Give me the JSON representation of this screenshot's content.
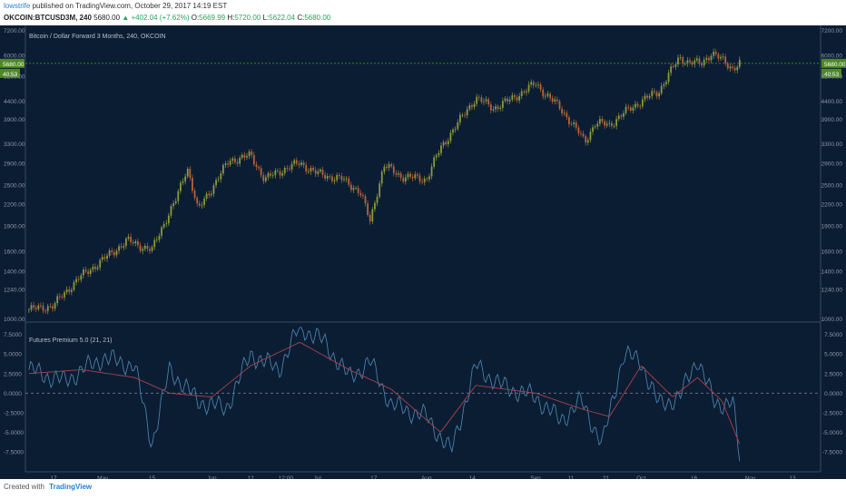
{
  "header": {
    "username": "lowstrife",
    "published_text": "published on TradingView.com, October 29, 2017 14:19 EST",
    "symbol": "OKCOIN:BTCUSD3M, 240",
    "last_price": "5680.00",
    "change": "▲ +402.04 (+7.62%)",
    "open_label": "O:",
    "open_value": "5669.99",
    "high_label": "H:",
    "high_value": "5720.00",
    "low_label": "L:",
    "low_value": "5622.04",
    "close_label": "C:",
    "close_value": "5680.00"
  },
  "footer": {
    "created_with": "Created with",
    "brand": "TradingView"
  },
  "colors": {
    "background": "#0b1d33",
    "candle_up": "#8a9a3a",
    "candle_down": "#b8623a",
    "oscillator": "#4a7fa8",
    "signal": "#a8424e",
    "price_badge": "#4e8a1e",
    "axis_text": "#8b97a6",
    "pane_border": "#3a4b5f",
    "zero_line": "#5f6f82"
  },
  "chart_data": [
    {
      "type": "candlestick",
      "title": "Bitcoin / Dollar Forward 3 Months, 240, OKCOIN",
      "y_scale": "log",
      "ylim": [
        1000,
        7200
      ],
      "y_ticks": [
        "7200.00",
        "6000.00",
        "5200.00",
        "4400.00",
        "3900.00",
        "3300.00",
        "2900.00",
        "2500.00",
        "2200.00",
        "1900.00",
        "1600.00",
        "1400.00",
        "1240.00",
        "1000.00"
      ],
      "price_badge": "5680.00",
      "countdown_badge": "40:53",
      "x_ticks": [
        "17",
        "May",
        "15",
        "Jun",
        "12",
        "12:00",
        "Jul",
        "17",
        "Aug",
        "14",
        "Sep",
        "11",
        "21",
        "Oct",
        "16",
        "Nov",
        "13"
      ],
      "x": [
        "2017-04-10",
        "2017-04-17",
        "2017-04-24",
        "2017-05-01",
        "2017-05-08",
        "2017-05-15",
        "2017-05-22",
        "2017-05-25",
        "2017-05-28",
        "2017-06-01",
        "2017-06-06",
        "2017-06-12",
        "2017-06-16",
        "2017-06-22",
        "2017-06-26",
        "2017-07-01",
        "2017-07-08",
        "2017-07-13",
        "2017-07-16",
        "2017-07-20",
        "2017-07-25",
        "2017-08-01",
        "2017-08-05",
        "2017-08-10",
        "2017-08-15",
        "2017-08-20",
        "2017-08-25",
        "2017-09-01",
        "2017-09-04",
        "2017-09-08",
        "2017-09-12",
        "2017-09-15",
        "2017-09-18",
        "2017-09-22",
        "2017-09-28",
        "2017-10-01",
        "2017-10-06",
        "2017-10-10",
        "2017-10-12",
        "2017-10-14",
        "2017-10-18",
        "2017-10-21",
        "2017-10-24",
        "2017-10-27",
        "2017-10-29"
      ],
      "close": [
        1080,
        1110,
        1330,
        1510,
        1720,
        1610,
        2280,
        2820,
        2100,
        2450,
        2950,
        3050,
        2600,
        2800,
        2900,
        2700,
        2600,
        2400,
        1950,
        2850,
        2650,
        2600,
        3200,
        3800,
        4500,
        4200,
        4450,
        4950,
        4600,
        4200,
        3700,
        3350,
        3800,
        3750,
        4200,
        4400,
        4700,
        5500,
        5900,
        5750,
        5650,
        6100,
        5800,
        5500,
        5680
      ]
    },
    {
      "type": "line",
      "title": "Futures Premium 5.0 (21, 21)",
      "ylim": [
        -9,
        8.5
      ],
      "y_ticks": [
        "7.5000",
        "5.0000",
        "2.5000",
        "0.0000",
        "-2.5000",
        "-5.0000",
        "-7.5000"
      ],
      "series": [
        {
          "x": [
            "2017-04-10",
            "2017-04-20",
            "2017-05-01",
            "2017-05-10",
            "2017-05-15",
            "2017-05-20",
            "2017-05-28",
            "2017-06-05",
            "2017-06-12",
            "2017-06-20",
            "2017-06-26",
            "2017-07-03",
            "2017-07-10",
            "2017-07-16",
            "2017-07-22",
            "2017-08-01",
            "2017-08-08",
            "2017-08-15",
            "2017-08-22",
            "2017-09-01",
            "2017-09-08",
            "2017-09-14",
            "2017-09-20",
            "2017-09-26",
            "2017-10-01",
            "2017-10-06",
            "2017-10-12",
            "2017-10-17",
            "2017-10-22",
            "2017-10-27",
            "2017-10-29"
          ],
          "values": [
            3.0,
            1.5,
            4.5,
            3.5,
            -6.5,
            3.0,
            -1.0,
            -2.0,
            5.0,
            3.0,
            8.5,
            6.5,
            2.0,
            4.0,
            -1.5,
            -3.0,
            -7.5,
            3.5,
            1.0,
            -0.5,
            -3.5,
            -1.0,
            -6.5,
            5.0,
            4.0,
            -1.5,
            -0.5,
            4.5,
            -1.5,
            -1.0,
            -8.5
          ]
        },
        {
          "x": [
            "2017-04-10",
            "2017-04-25",
            "2017-05-10",
            "2017-05-20",
            "2017-06-01",
            "2017-06-12",
            "2017-06-26",
            "2017-07-10",
            "2017-07-22",
            "2017-08-05",
            "2017-08-15",
            "2017-09-01",
            "2017-09-14",
            "2017-09-22",
            "2017-10-01",
            "2017-10-10",
            "2017-10-17",
            "2017-10-24",
            "2017-10-29"
          ],
          "values": [
            2.5,
            3.0,
            2.0,
            0.0,
            -0.5,
            3.5,
            6.5,
            3.0,
            0.5,
            -5.0,
            1.0,
            0.0,
            -2.0,
            -3.0,
            3.5,
            -0.5,
            2.0,
            -1.0,
            -6.5
          ]
        }
      ]
    }
  ]
}
